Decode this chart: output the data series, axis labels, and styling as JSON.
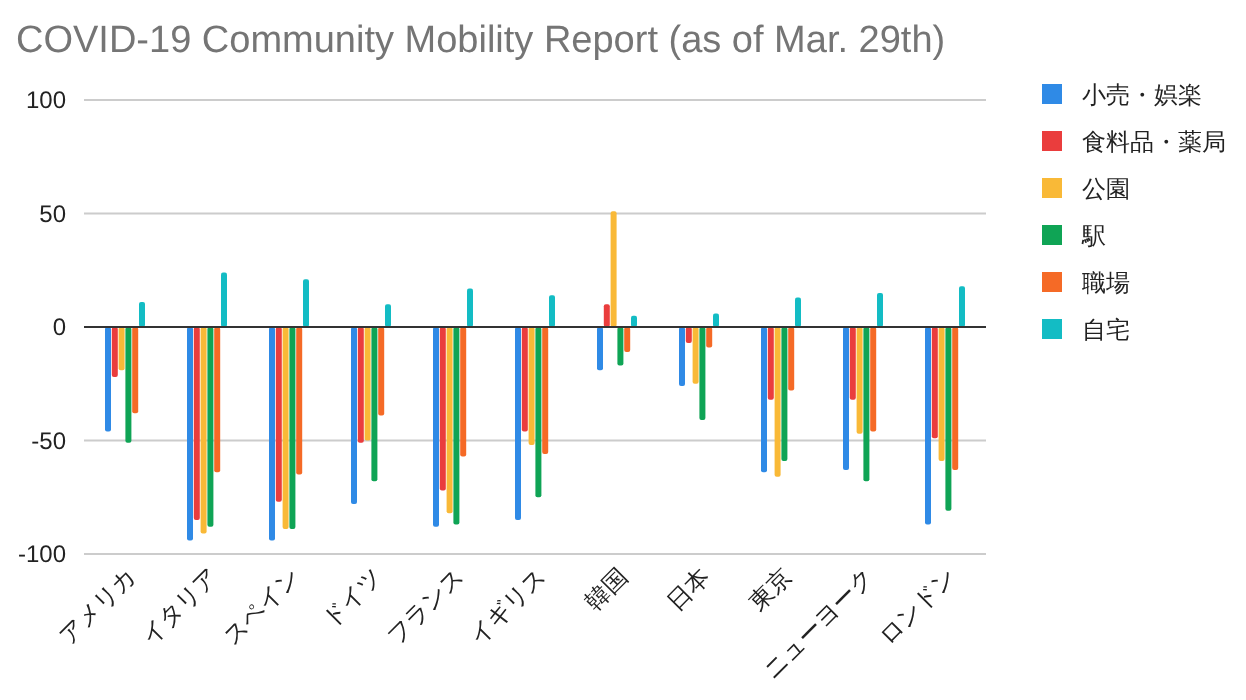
{
  "chart_data": {
    "type": "bar",
    "title": "COVID-19 Community Mobility Report (as of Mar. 29th)",
    "categories": [
      "アメリカ",
      "イタリア",
      "スペイン",
      "ドイツ",
      "フランス",
      "イギリス",
      "韓国",
      "日本",
      "東京",
      "ニューヨーク",
      "ロンドン"
    ],
    "series": [
      {
        "name": "小売・娯楽",
        "color": "#2f8ae6",
        "values": [
          -46,
          -94,
          -94,
          -78,
          -88,
          -85,
          -19,
          -26,
          -64,
          -63,
          -87
        ]
      },
      {
        "name": "食料品・薬局",
        "color": "#ea3d3d",
        "values": [
          -22,
          -85,
          -77,
          -51,
          -72,
          -46,
          10,
          -7,
          -32,
          -32,
          -49
        ]
      },
      {
        "name": "公園",
        "color": "#f9b937",
        "values": [
          -19,
          -91,
          -89,
          -50,
          -82,
          -52,
          51,
          -25,
          -66,
          -47,
          -59
        ]
      },
      {
        "name": "駅",
        "color": "#0fa455",
        "values": [
          -51,
          -88,
          -89,
          -68,
          -87,
          -75,
          -17,
          -41,
          -59,
          -68,
          -81
        ]
      },
      {
        "name": "職場",
        "color": "#f56a26",
        "values": [
          -38,
          -64,
          -65,
          -39,
          -57,
          -56,
          -11,
          -9,
          -28,
          -46,
          -63
        ]
      },
      {
        "name": "自宅",
        "color": "#13bcc4",
        "values": [
          11,
          24,
          21,
          10,
          17,
          14,
          5,
          6,
          13,
          15,
          18
        ]
      }
    ],
    "ylim": [
      -100,
      100
    ],
    "yticks": [
      -100,
      -50,
      0,
      50,
      100
    ],
    "grid": "y",
    "legend": "right"
  }
}
